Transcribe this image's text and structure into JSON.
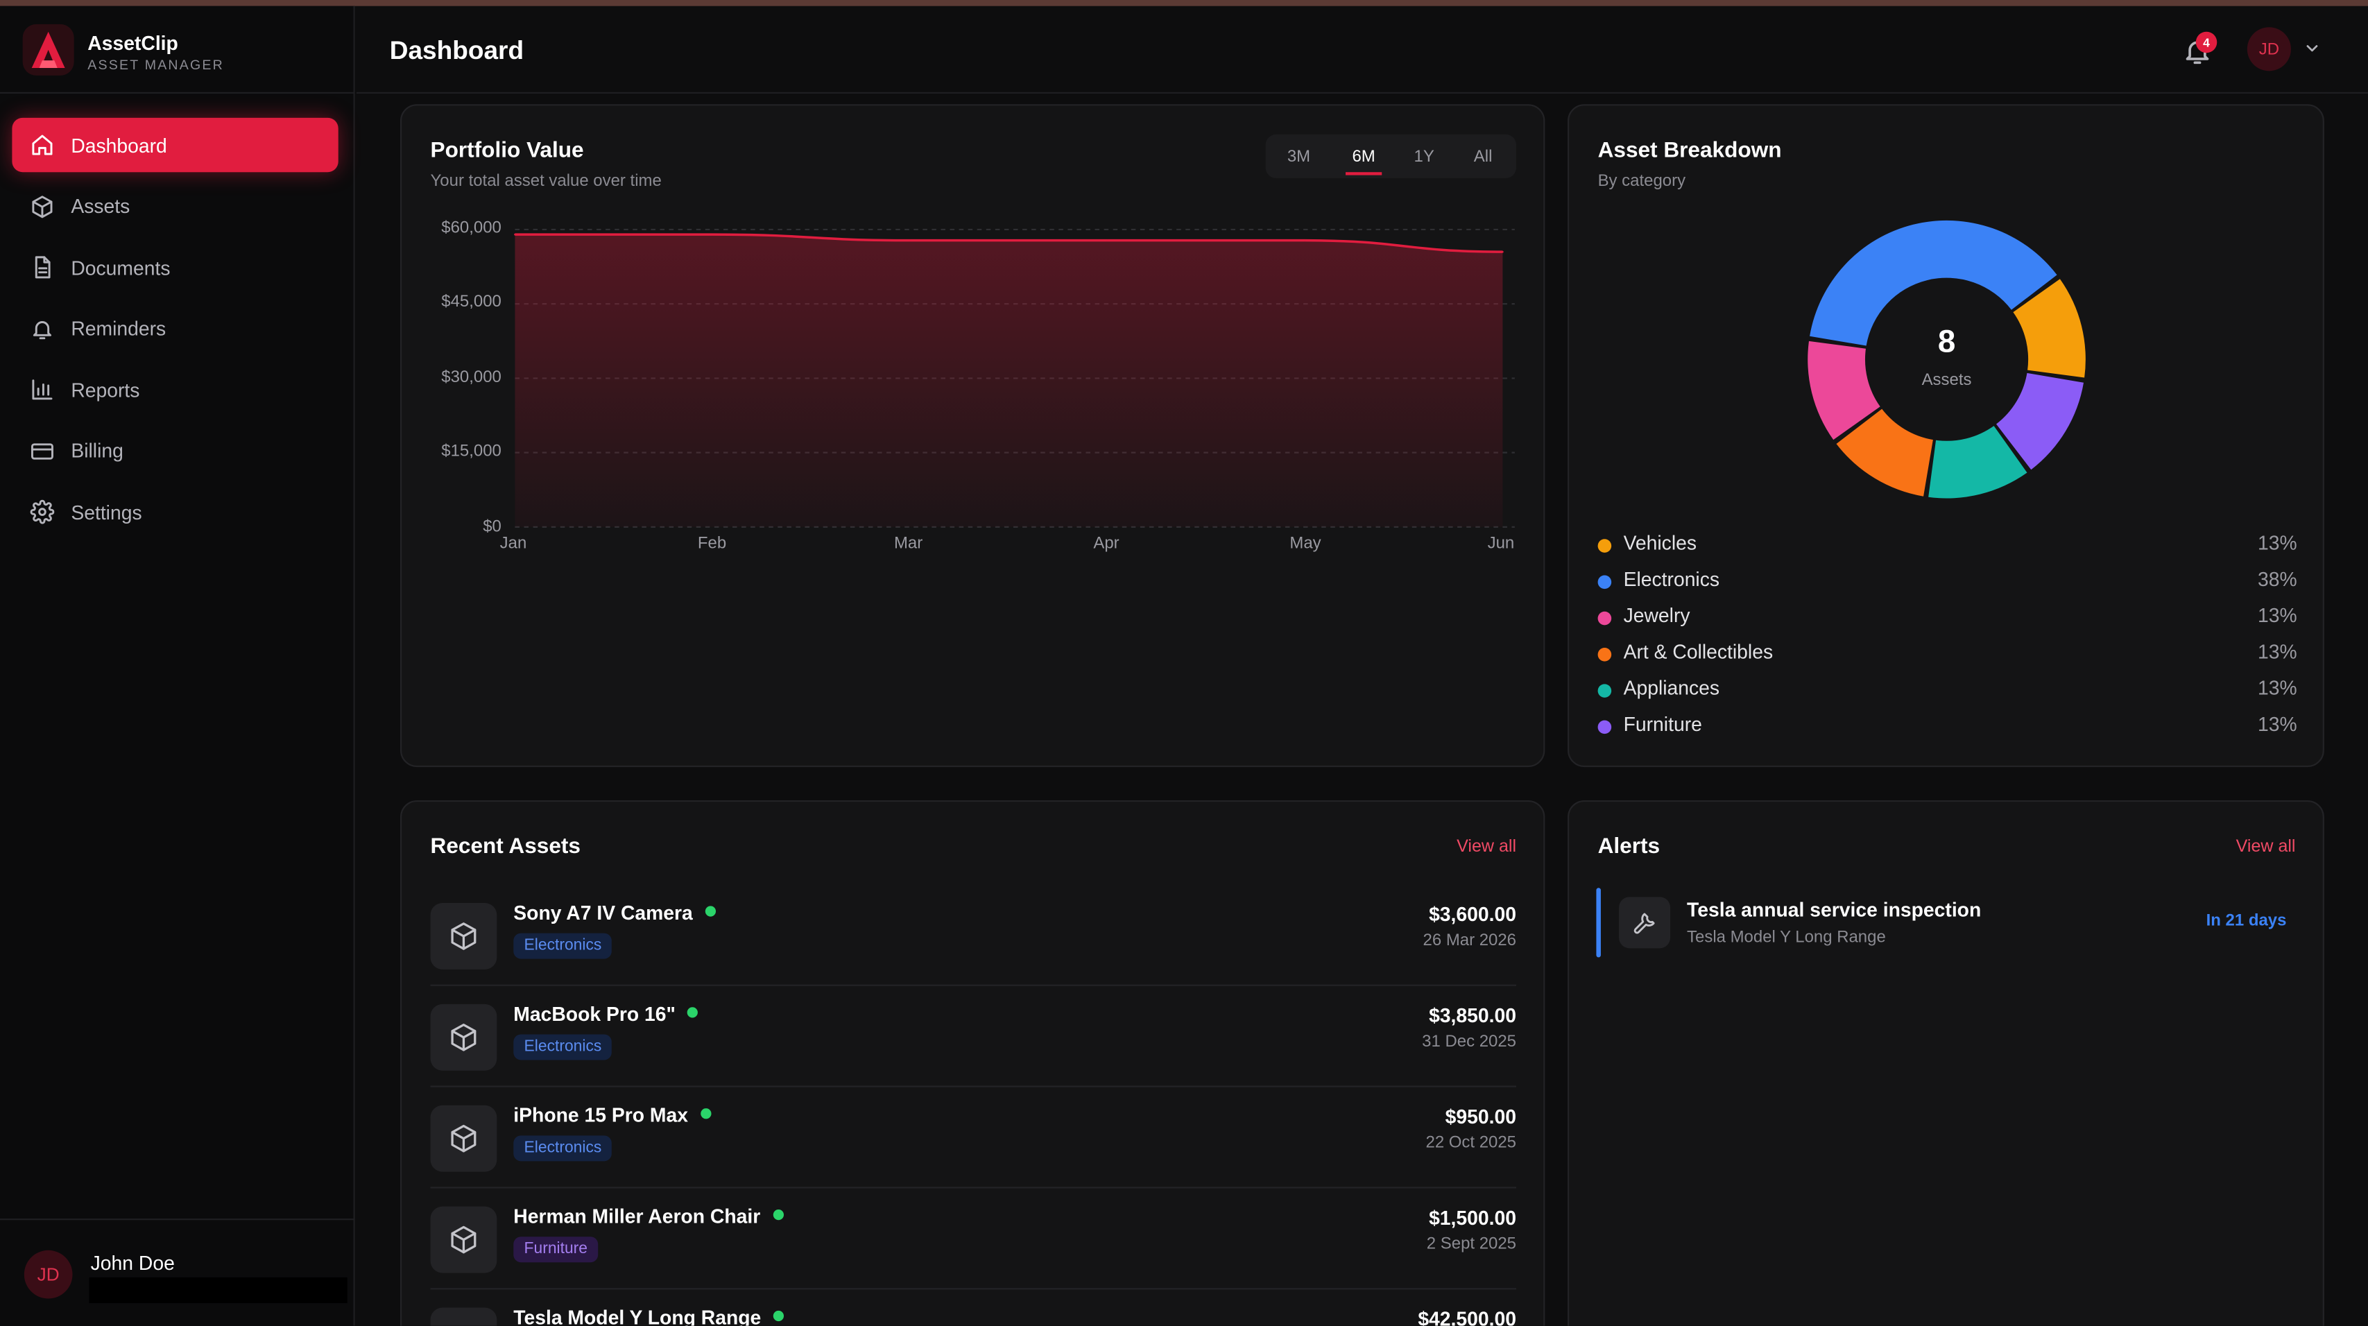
{
  "brand": {
    "name": "AssetClip",
    "subtitle": "ASSET MANAGER"
  },
  "sidebar": {
    "items": [
      {
        "label": "Dashboard",
        "icon": "home-icon",
        "active": true
      },
      {
        "label": "Assets",
        "icon": "box-icon"
      },
      {
        "label": "Documents",
        "icon": "document-icon"
      },
      {
        "label": "Reminders",
        "icon": "bell-icon"
      },
      {
        "label": "Reports",
        "icon": "bar-chart-icon"
      },
      {
        "label": "Billing",
        "icon": "credit-card-icon"
      },
      {
        "label": "Settings",
        "icon": "gear-icon"
      }
    ],
    "user": {
      "initials": "JD",
      "name": "John Doe"
    }
  },
  "header": {
    "title": "Dashboard",
    "notification_count": "4",
    "avatar_initials": "JD"
  },
  "portfolio": {
    "title": "Portfolio Value",
    "subtitle": "Your total asset value over time",
    "ranges": [
      "3M",
      "6M",
      "1Y",
      "All"
    ],
    "active_range": "6M"
  },
  "chart_data": {
    "type": "area",
    "title": "Portfolio Value",
    "subtitle": "Your total asset value over time",
    "x": [
      "Jan",
      "Feb",
      "Mar",
      "Apr",
      "May",
      "Jun"
    ],
    "series": [
      {
        "values": [
          59000,
          59000,
          57800,
          57800,
          57800,
          55500
        ]
      }
    ],
    "y_ticks": [
      "$60,000",
      "$45,000",
      "$30,000",
      "$15,000",
      "$0"
    ],
    "ylim": [
      0,
      60000
    ],
    "grid": true,
    "colors": {
      "line": "#e11d3f"
    }
  },
  "breakdown": {
    "title": "Asset Breakdown",
    "subtitle": "By category",
    "center_value": "8",
    "center_label": "Assets",
    "categories": [
      {
        "label": "Vehicles",
        "pct": "13%",
        "value": 12.5,
        "color": "#f59e0b"
      },
      {
        "label": "Electronics",
        "pct": "38%",
        "value": 37.5,
        "color": "#3b82f6"
      },
      {
        "label": "Jewelry",
        "pct": "13%",
        "value": 12.5,
        "color": "#ec4899"
      },
      {
        "label": "Art & Collectibles",
        "pct": "13%",
        "value": 12.5,
        "color": "#f97316"
      },
      {
        "label": "Appliances",
        "pct": "13%",
        "value": 12.5,
        "color": "#14b8a6"
      },
      {
        "label": "Furniture",
        "pct": "13%",
        "value": 12.5,
        "color": "#8b5cf6"
      }
    ]
  },
  "recent": {
    "title": "Recent Assets",
    "view_all": "View all",
    "items": [
      {
        "name": "Sony A7 IV Camera",
        "tag": "Electronics",
        "price": "$3,600.00",
        "date": "26 Mar 2026"
      },
      {
        "name": "MacBook Pro 16\"",
        "tag": "Electronics",
        "price": "$3,850.00",
        "date": "31 Dec 2025"
      },
      {
        "name": "iPhone 15 Pro Max",
        "tag": "Electronics",
        "price": "$950.00",
        "date": "22 Oct 2025"
      },
      {
        "name": "Herman Miller Aeron Chair",
        "tag": "Furniture",
        "price": "$1,500.00",
        "date": "2 Sept 2025"
      },
      {
        "name": "Tesla Model Y Long Range",
        "tag": "",
        "price": "$42,500.00",
        "date": ""
      }
    ]
  },
  "alerts": {
    "title": "Alerts",
    "view_all": "View all",
    "items": [
      {
        "title": "Tesla annual service inspection",
        "subtitle": "Tesla Model Y Long Range",
        "when": "In 21 days"
      }
    ]
  },
  "colors": {
    "accent": "#e11d3f",
    "status_active": "#2bd46a",
    "info": "#3b82f6"
  }
}
